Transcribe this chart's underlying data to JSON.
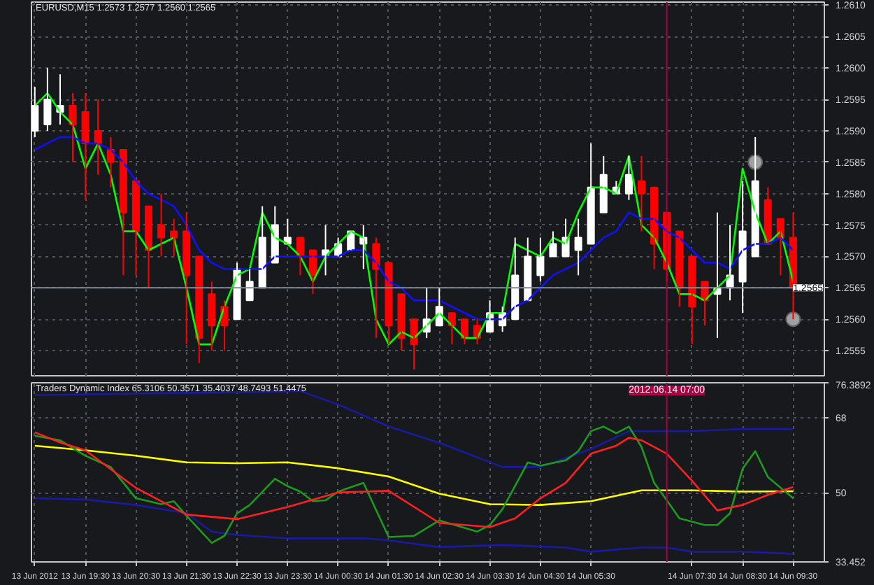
{
  "chart_data": [
    {
      "type": "candlestick",
      "title": "EURUSD,M15 1.2573 1.2577 1.2560 1.2565",
      "x": [
        "2012-06-13T18:30",
        "2012-06-13T18:45",
        "2012-06-13T19:00",
        "2012-06-13T19:15",
        "2012-06-13T19:30",
        "2012-06-13T19:45",
        "2012-06-13T20:00",
        "2012-06-13T20:15",
        "2012-06-13T20:30",
        "2012-06-13T20:45",
        "2012-06-13T21:00",
        "2012-06-13T21:15",
        "2012-06-13T21:30",
        "2012-06-13T21:45",
        "2012-06-13T22:00",
        "2012-06-13T22:15",
        "2012-06-13T22:30",
        "2012-06-13T22:45",
        "2012-06-13T23:00",
        "2012-06-13T23:15",
        "2012-06-13T23:30",
        "2012-06-13T23:45",
        "2012-06-14T00:00",
        "2012-06-14T00:15",
        "2012-06-14T00:30",
        "2012-06-14T00:45",
        "2012-06-14T01:00",
        "2012-06-14T01:15",
        "2012-06-14T01:30",
        "2012-06-14T01:45",
        "2012-06-14T02:00",
        "2012-06-14T02:15",
        "2012-06-14T02:30",
        "2012-06-14T02:45",
        "2012-06-14T03:00",
        "2012-06-14T03:15",
        "2012-06-14T03:30",
        "2012-06-14T03:45",
        "2012-06-14T04:00",
        "2012-06-14T04:15",
        "2012-06-14T04:30",
        "2012-06-14T04:45",
        "2012-06-14T05:00",
        "2012-06-14T05:15",
        "2012-06-14T05:30",
        "2012-06-14T05:45",
        "2012-06-14T06:00",
        "2012-06-14T06:15",
        "2012-06-14T06:30",
        "2012-06-14T06:45",
        "2012-06-14T07:00",
        "2012-06-14T07:15",
        "2012-06-14T07:30",
        "2012-06-14T07:45",
        "2012-06-14T08:00",
        "2012-06-14T08:15",
        "2012-06-14T08:30",
        "2012-06-14T08:45",
        "2012-06-14T09:00",
        "2012-06-14T09:15",
        "2012-06-14T09:30"
      ],
      "ohlc": [
        [
          1.259,
          1.2597,
          1.2589,
          1.2594
        ],
        [
          1.2591,
          1.26,
          1.259,
          1.2595
        ],
        [
          1.2593,
          1.2599,
          1.2591,
          1.2594
        ],
        [
          1.2594,
          1.2596,
          1.2585,
          1.2591
        ],
        [
          1.2593,
          1.2596,
          1.2579,
          1.2588
        ],
        [
          1.259,
          1.2595,
          1.2583,
          1.2588
        ],
        [
          1.2587,
          1.2589,
          1.2581,
          1.2585
        ],
        [
          1.2587,
          1.2587,
          1.2567,
          1.2577
        ],
        [
          1.2582,
          1.2582,
          1.2567,
          1.2574
        ],
        [
          1.2578,
          1.2578,
          1.2565,
          1.2571
        ],
        [
          1.2575,
          1.258,
          1.257,
          1.2573
        ],
        [
          1.2574,
          1.2576,
          1.257,
          1.2573
        ],
        [
          1.2574,
          1.2577,
          1.2556,
          1.2567
        ],
        [
          1.257,
          1.257,
          1.2553,
          1.2557
        ],
        [
          1.2564,
          1.2566,
          1.2555,
          1.2559
        ],
        [
          1.2562,
          1.2563,
          1.2555,
          1.2559
        ],
        [
          1.256,
          1.2569,
          1.256,
          1.2568
        ],
        [
          1.2563,
          1.2568,
          1.2563,
          1.2566
        ],
        [
          1.2565,
          1.2578,
          1.2565,
          1.2573
        ],
        [
          1.2569,
          1.2578,
          1.2569,
          1.2575
        ],
        [
          1.2572,
          1.2576,
          1.2572,
          1.2573
        ],
        [
          1.2573,
          1.2573,
          1.2567,
          1.257
        ],
        [
          1.2571,
          1.2571,
          1.2564,
          1.2567
        ],
        [
          1.257,
          1.2575,
          1.2567,
          1.2571
        ],
        [
          1.257,
          1.2573,
          1.257,
          1.2572
        ],
        [
          1.2571,
          1.2574,
          1.2571,
          1.2574
        ],
        [
          1.2572,
          1.2575,
          1.2568,
          1.2573
        ],
        [
          1.2572,
          1.2573,
          1.2557,
          1.2568
        ],
        [
          1.2569,
          1.2569,
          1.2556,
          1.2559
        ],
        [
          1.2564,
          1.2564,
          1.2555,
          1.2557
        ],
        [
          1.256,
          1.256,
          1.2552,
          1.2556
        ],
        [
          1.2558,
          1.2565,
          1.2557,
          1.256
        ],
        [
          1.2559,
          1.2565,
          1.2559,
          1.2562
        ],
        [
          1.2561,
          1.2561,
          1.2556,
          1.2559
        ],
        [
          1.256,
          1.256,
          1.2556,
          1.2557
        ],
        [
          1.2559,
          1.256,
          1.2556,
          1.2557
        ],
        [
          1.2558,
          1.2563,
          1.2558,
          1.2561
        ],
        [
          1.2559,
          1.2562,
          1.2558,
          1.2561
        ],
        [
          1.256,
          1.2573,
          1.256,
          1.2567
        ],
        [
          1.2563,
          1.2573,
          1.2563,
          1.257
        ],
        [
          1.2567,
          1.2573,
          1.2566,
          1.257
        ],
        [
          1.257,
          1.2574,
          1.257,
          1.2572
        ],
        [
          1.257,
          1.2576,
          1.257,
          1.2573
        ],
        [
          1.2571,
          1.2576,
          1.2567,
          1.2573
        ],
        [
          1.2572,
          1.2588,
          1.2572,
          1.2581
        ],
        [
          1.2577,
          1.2586,
          1.2577,
          1.2583
        ],
        [
          1.258,
          1.2582,
          1.258,
          1.2581
        ],
        [
          1.258,
          1.2586,
          1.2579,
          1.2583
        ],
        [
          1.2582,
          1.2586,
          1.2574,
          1.258
        ],
        [
          1.2581,
          1.2581,
          1.2568,
          1.2572
        ],
        [
          1.2577,
          1.2577,
          1.2566,
          1.2568
        ],
        [
          1.2574,
          1.2574,
          1.2562,
          1.2565
        ],
        [
          1.257,
          1.257,
          1.2556,
          1.2562
        ],
        [
          1.2566,
          1.2566,
          1.2559,
          1.2563
        ],
        [
          1.2564,
          1.2577,
          1.2557,
          1.2565
        ],
        [
          1.2565,
          1.2575,
          1.2563,
          1.2567
        ],
        [
          1.2566,
          1.2582,
          1.2561,
          1.2574
        ],
        [
          1.257,
          1.2589,
          1.257,
          1.2582
        ],
        [
          1.2579,
          1.2581,
          1.2572,
          1.2572
        ],
        [
          1.2576,
          1.2576,
          1.2567,
          1.2573
        ],
        [
          1.2573,
          1.2577,
          1.256,
          1.2565
        ]
      ],
      "colors": [
        "#ffffff",
        "#ffffff",
        "#ffffff",
        "#ff0000",
        "#ff0000",
        "#ff0000",
        "#ff0000",
        "#ff0000",
        "#ff0000",
        "#ff0000",
        "#ff0000",
        "#ff0000",
        "#ff0000",
        "#ff0000",
        "#ff0000",
        "#ff0000",
        "#ffffff",
        "#ffffff",
        "#ffffff",
        "#ffffff",
        "#ffffff",
        "#ff0000",
        "#ff0000",
        "#ffffff",
        "#ffffff",
        "#ffffff",
        "#ffffff",
        "#ff0000",
        "#ff0000",
        "#ff0000",
        "#ff0000",
        "#ffffff",
        "#ffffff",
        "#ff0000",
        "#ff0000",
        "#ff0000",
        "#ffffff",
        "#ffffff",
        "#ffffff",
        "#ffffff",
        "#ffffff",
        "#ffffff",
        "#ffffff",
        "#ffffff",
        "#ffffff",
        "#ffffff",
        "#ffffff",
        "#ffffff",
        "#ff0000",
        "#ff0000",
        "#ff0000",
        "#ff0000",
        "#ff0000",
        "#ff0000",
        "#ffffff",
        "#ffffff",
        "#ffffff",
        "#ffffff",
        "#ff0000",
        "#ff0000",
        "#ff0000"
      ],
      "series": [
        {
          "type": "line",
          "color": "#00ff00",
          "values": [
            1.2594,
            1.2596,
            1.2593,
            1.2591,
            1.2584,
            1.2588,
            1.2583,
            1.2574,
            1.2574,
            1.2571,
            1.2572,
            1.2573,
            1.2565,
            1.2556,
            1.2556,
            1.2562,
            1.2567,
            1.2568,
            1.2577,
            1.2573,
            1.2572,
            1.257,
            1.2566,
            1.257,
            1.2572,
            1.2574,
            1.2573,
            1.256,
            1.2556,
            1.2558,
            1.2557,
            1.2559,
            1.2561,
            1.2559,
            1.2557,
            1.2557,
            1.2561,
            1.2561,
            1.2572,
            1.2571,
            1.257,
            1.2573,
            1.2572,
            1.2577,
            1.2581,
            1.2581,
            1.258,
            1.2586,
            1.2575,
            1.2573,
            1.2569,
            1.2564,
            1.2564,
            1.2563,
            1.2565,
            1.2567,
            1.2584,
            1.2577,
            1.2572,
            1.2574,
            1.2566
          ]
        },
        {
          "type": "line",
          "color": "#1010ff",
          "values": [
            1.2587,
            1.2588,
            1.2589,
            1.2589,
            1.2588,
            1.2588,
            1.2587,
            1.2585,
            1.2582,
            1.258,
            1.2579,
            1.2578,
            1.2575,
            1.2571,
            1.2569,
            1.2568,
            1.2568,
            1.2568,
            1.2568,
            1.257,
            1.257,
            1.257,
            1.257,
            1.257,
            1.257,
            1.2571,
            1.2571,
            1.2569,
            1.2566,
            1.2565,
            1.2563,
            1.2563,
            1.2563,
            1.2562,
            1.2561,
            1.256,
            1.256,
            1.256,
            1.2562,
            1.2563,
            1.2565,
            1.2567,
            1.2568,
            1.2569,
            1.2571,
            1.2573,
            1.2574,
            1.2577,
            1.2576,
            1.2576,
            1.2574,
            1.2573,
            1.2571,
            1.2569,
            1.2569,
            1.2568,
            1.2571,
            1.2572,
            1.2572,
            1.2573,
            1.2571
          ]
        },
        {
          "type": "scatter",
          "marker": "circle",
          "color": "#a0a0a0",
          "x": [
            "2012-06-14T08:45",
            "2012-06-14T09:30"
          ],
          "values": [
            1.2585,
            1.256
          ]
        }
      ],
      "xlim": [
        "2012-06-13T18:26",
        "2012-06-14T10:07"
      ],
      "xticks": [
        {
          "value": "2012-06-13T18:30",
          "label": null
        },
        {
          "value": "2012-06-13T19:30",
          "label": null
        },
        {
          "value": "2012-06-13T20:30",
          "label": null
        },
        {
          "value": "2012-06-13T21:30",
          "label": null
        },
        {
          "value": "2012-06-13T22:30",
          "label": null
        },
        {
          "value": "2012-06-13T23:30",
          "label": null
        },
        {
          "value": "2012-06-14T00:30",
          "label": null
        },
        {
          "value": "2012-06-14T01:30",
          "label": null
        },
        {
          "value": "2012-06-14T02:30",
          "label": null
        },
        {
          "value": "2012-06-14T03:30",
          "label": null
        },
        {
          "value": "2012-06-14T04:30",
          "label": null
        },
        {
          "value": "2012-06-14T05:30",
          "label": null
        },
        {
          "value": "2012-06-14T07:30",
          "label": null
        },
        {
          "value": "2012-06-14T08:30",
          "label": null
        },
        {
          "value": "2012-06-14T09:30",
          "label": null
        }
      ],
      "ylim": [
        1.2551,
        1.26105
      ],
      "yticks": [
        1.2555,
        {
          "value": 1.256,
          "label": "1.2560"
        },
        1.2565,
        {
          "value": 1.257,
          "label": "1.2570"
        },
        1.2575,
        {
          "value": 1.258,
          "label": "1.2580"
        },
        1.2585,
        {
          "value": 1.259,
          "label": "1.2590"
        },
        1.2595,
        {
          "value": 1.26,
          "label": "1.2600"
        },
        1.2605,
        {
          "value": 1.261,
          "label": "1.2610"
        }
      ],
      "tick_labels": "y",
      "grid": true,
      "ref_lines": [
        {
          "axis": "y",
          "value": 1.2565,
          "label": "1.2565",
          "color": "#7f8a99"
        },
        {
          "axis": "x",
          "value": "2012-06-14T07:00",
          "color": "#aa0044"
        }
      ]
    },
    {
      "type": "line",
      "title": "Traders Dynamic Index 65.3106 50.3571 35.4037 48.7493 51.4475",
      "series": [
        {
          "color": "#1a1aa0",
          "x": [
            "2012-06-13T18:30",
            "2012-06-13T21:00",
            "2012-06-13T22:30",
            "2012-06-13T23:45",
            "2012-06-14T00:30",
            "2012-06-14T01:30",
            "2012-06-14T02:30",
            "2012-06-14T03:45",
            "2012-06-14T04:30",
            "2012-06-14T05:30",
            "2012-06-14T06:15",
            "2012-06-14T07:30",
            "2012-06-14T08:30",
            "2012-06-14T09:30"
          ],
          "values": [
            73.4,
            73.9,
            74.1,
            74.4,
            71.2,
            65.9,
            62.0,
            56.2,
            56.2,
            60.5,
            64.8,
            64.8,
            65.3,
            65.3
          ]
        },
        {
          "color": "#ffff00",
          "x": [
            "2012-06-13T18:30",
            "2012-06-13T19:30",
            "2012-06-13T20:30",
            "2012-06-13T21:30",
            "2012-06-13T22:30",
            "2012-06-13T23:30",
            "2012-06-14T00:30",
            "2012-06-14T01:30",
            "2012-06-14T02:30",
            "2012-06-14T03:30",
            "2012-06-14T04:30",
            "2012-06-14T05:30",
            "2012-06-14T06:30",
            "2012-06-14T07:30",
            "2012-06-14T08:30",
            "2012-06-14T09:30"
          ],
          "values": [
            61.3,
            60.2,
            58.9,
            57.3,
            57.1,
            57.3,
            55.9,
            53.9,
            49.8,
            47.3,
            47.1,
            48.0,
            50.6,
            50.6,
            50.3,
            50.4
          ]
        },
        {
          "color": "#1a1aa0",
          "x": [
            "2012-06-13T18:30",
            "2012-06-13T19:30",
            "2012-06-13T20:30",
            "2012-06-13T21:30",
            "2012-06-13T22:00",
            "2012-06-13T22:30",
            "2012-06-13T23:30",
            "2012-06-14T01:00",
            "2012-06-14T01:30",
            "2012-06-14T02:30",
            "2012-06-14T03:45",
            "2012-06-14T05:00",
            "2012-06-14T05:30",
            "2012-06-14T06:30",
            "2012-06-14T07:00",
            "2012-06-14T07:30",
            "2012-06-14T08:30",
            "2012-06-14T09:30"
          ],
          "values": [
            48.7,
            48.4,
            47.1,
            45.1,
            40.7,
            39.9,
            39.1,
            39.1,
            38.6,
            37.0,
            37.5,
            36.9,
            35.9,
            36.9,
            36.9,
            35.9,
            35.9,
            35.4
          ]
        },
        {
          "color": "#1e9a1e",
          "x": [
            "2012-06-13T18:30",
            "2012-06-13T19:00",
            "2012-06-13T19:30",
            "2012-06-13T20:00",
            "2012-06-13T20:30",
            "2012-06-13T21:00",
            "2012-06-13T21:15",
            "2012-06-13T21:30",
            "2012-06-13T22:00",
            "2012-06-13T22:15",
            "2012-06-13T22:30",
            "2012-06-13T22:45",
            "2012-06-13T23:15",
            "2012-06-13T23:30",
            "2012-06-13T23:45",
            "2012-06-14T00:00",
            "2012-06-14T00:15",
            "2012-06-14T00:30",
            "2012-06-14T01:00",
            "2012-06-14T01:30",
            "2012-06-14T02:00",
            "2012-06-14T02:30",
            "2012-06-14T03:15",
            "2012-06-14T03:30",
            "2012-06-14T03:45",
            "2012-06-14T04:15",
            "2012-06-14T04:30",
            "2012-06-14T05:00",
            "2012-06-14T05:15",
            "2012-06-14T05:30",
            "2012-06-14T05:45",
            "2012-06-14T06:00",
            "2012-06-14T06:15",
            "2012-06-14T06:30",
            "2012-06-14T06:45",
            "2012-06-14T07:00",
            "2012-06-14T07:15",
            "2012-06-14T07:45",
            "2012-06-14T08:00",
            "2012-06-14T08:15",
            "2012-06-14T08:30",
            "2012-06-14T08:45",
            "2012-06-14T09:00",
            "2012-06-14T09:30"
          ],
          "values": [
            63.7,
            62.6,
            58.9,
            56.2,
            48.7,
            47.3,
            48.0,
            44.5,
            38.0,
            39.7,
            45.1,
            47.1,
            53.4,
            51.6,
            50.3,
            48.0,
            48.2,
            50.3,
            52.4,
            39.4,
            39.7,
            43.4,
            40.7,
            42.3,
            46.1,
            57.3,
            56.5,
            57.8,
            60.0,
            64.8,
            65.9,
            64.3,
            65.9,
            61.0,
            52.4,
            48.2,
            43.9,
            42.3,
            42.3,
            45.1,
            55.8,
            60.0,
            53.8,
            48.7
          ]
        },
        {
          "color": "#ff2020",
          "x": [
            "2012-06-13T18:30",
            "2012-06-13T19:00",
            "2012-06-13T19:30",
            "2012-06-13T20:30",
            "2012-06-13T21:30",
            "2012-06-13T22:30",
            "2012-06-13T23:30",
            "2012-06-14T00:30",
            "2012-06-14T01:30",
            "2012-06-14T02:30",
            "2012-06-14T03:30",
            "2012-06-14T04:00",
            "2012-06-14T04:30",
            "2012-06-14T05:00",
            "2012-06-14T05:30",
            "2012-06-14T06:00",
            "2012-06-14T06:15",
            "2012-06-14T06:30",
            "2012-06-14T07:00",
            "2012-06-14T07:30",
            "2012-06-14T08:00",
            "2012-06-14T08:30",
            "2012-06-14T09:00",
            "2012-06-14T09:30"
          ],
          "values": [
            64.5,
            62.1,
            60.2,
            51.2,
            44.8,
            43.7,
            46.6,
            50.1,
            50.5,
            42.8,
            41.8,
            43.9,
            48.7,
            52.4,
            59.4,
            61.3,
            63.2,
            62.6,
            59.4,
            52.9,
            45.8,
            47.1,
            49.5,
            51.4
          ]
        }
      ],
      "xlim": [
        "2012-06-13T18:26",
        "2012-06-14T10:07"
      ],
      "xticks": [
        {
          "value": "2012-06-13T18:30",
          "label": "13 Jun 2012"
        },
        {
          "value": "2012-06-13T19:30",
          "label": "13 Jun 19:30"
        },
        {
          "value": "2012-06-13T20:30",
          "label": "13 Jun 20:30"
        },
        {
          "value": "2012-06-13T21:30",
          "label": "13 Jun 21:30"
        },
        {
          "value": "2012-06-13T22:30",
          "label": "13 Jun 22:30"
        },
        {
          "value": "2012-06-13T23:30",
          "label": "13 Jun 23:30"
        },
        {
          "value": "2012-06-14T00:30",
          "label": "14 Jun 00:30"
        },
        {
          "value": "2012-06-14T01:30",
          "label": "14 Jun 01:30"
        },
        {
          "value": "2012-06-14T02:30",
          "label": "14 Jun 02:30"
        },
        {
          "value": "2012-06-14T03:30",
          "label": "14 Jun 03:30"
        },
        {
          "value": "2012-06-14T04:30",
          "label": "14 Jun 04:30"
        },
        {
          "value": "2012-06-14T05:30",
          "label": "14 Jun 05:30"
        },
        {
          "value": "2012-06-14T07:30",
          "label": "14 Jun 07:30"
        },
        {
          "value": "2012-06-14T08:30",
          "label": "14 Jun 08:30"
        },
        {
          "value": "2012-06-14T09:30",
          "label": "14 Jun 09:30"
        }
      ],
      "ylim": [
        33.452,
        76.3892
      ],
      "yticks": [
        33.452,
        50,
        68,
        76.3892
      ],
      "grid": true,
      "ref_lines": [
        {
          "axis": "x",
          "value": "2012-06-14T07:00",
          "label": "2012.06.14 07:00",
          "color": "#aa0044"
        }
      ]
    }
  ]
}
